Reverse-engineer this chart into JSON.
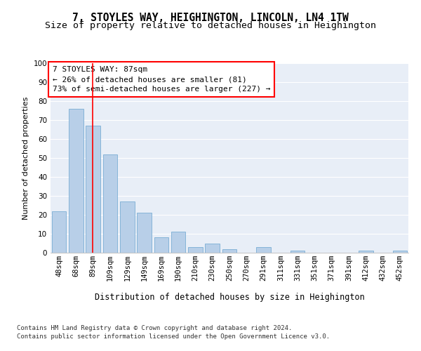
{
  "title": "7, STOYLES WAY, HEIGHINGTON, LINCOLN, LN4 1TW",
  "subtitle": "Size of property relative to detached houses in Heighington",
  "xlabel": "Distribution of detached houses by size in Heighington",
  "ylabel": "Number of detached properties",
  "categories": [
    "48sqm",
    "68sqm",
    "89sqm",
    "109sqm",
    "129sqm",
    "149sqm",
    "169sqm",
    "190sqm",
    "210sqm",
    "230sqm",
    "250sqm",
    "270sqm",
    "291sqm",
    "311sqm",
    "331sqm",
    "351sqm",
    "371sqm",
    "391sqm",
    "412sqm",
    "432sqm",
    "452sqm"
  ],
  "values": [
    22,
    76,
    67,
    52,
    27,
    21,
    8,
    11,
    3,
    5,
    2,
    0,
    3,
    0,
    1,
    0,
    0,
    0,
    1,
    0,
    1
  ],
  "bar_color": "#b8cfe8",
  "bar_edge_color": "#7aadd4",
  "red_line_index": 1.95,
  "ylim": [
    0,
    100
  ],
  "yticks": [
    0,
    10,
    20,
    30,
    40,
    50,
    60,
    70,
    80,
    90,
    100
  ],
  "bg_color": "#e8eef7",
  "grid_color": "#ffffff",
  "annotation_box_text": "7 STOYLES WAY: 87sqm\n← 26% of detached houses are smaller (81)\n73% of semi-detached houses are larger (227) →",
  "footnote_line1": "Contains HM Land Registry data © Crown copyright and database right 2024.",
  "footnote_line2": "Contains public sector information licensed under the Open Government Licence v3.0.",
  "title_fontsize": 10.5,
  "subtitle_fontsize": 9.5,
  "xlabel_fontsize": 8.5,
  "ylabel_fontsize": 8,
  "tick_fontsize": 7.5,
  "annot_fontsize": 8,
  "footnote_fontsize": 6.5
}
